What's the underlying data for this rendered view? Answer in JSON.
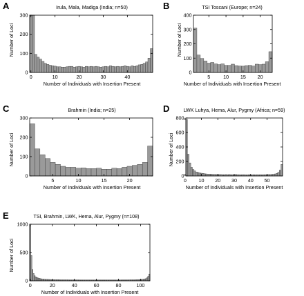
{
  "chart_data": [
    {
      "panel_letter": "A",
      "type": "bar",
      "title": "Irula, Mala, Madiga (India; n=50)",
      "xlabel": "Number of Individuals with Insertion Present",
      "ylabel": "Number of Loci",
      "xlim": [
        -0.5,
        50.5
      ],
      "ylim": [
        0,
        300
      ],
      "xticks": [
        0,
        10,
        20,
        30,
        40
      ],
      "yticks": [
        0,
        100,
        200,
        300
      ],
      "x": [
        0,
        1,
        2,
        3,
        4,
        5,
        6,
        7,
        8,
        9,
        10,
        11,
        12,
        13,
        14,
        15,
        16,
        17,
        18,
        19,
        20,
        21,
        22,
        23,
        24,
        25,
        26,
        27,
        28,
        29,
        30,
        31,
        32,
        33,
        34,
        35,
        36,
        37,
        38,
        39,
        40,
        41,
        42,
        43,
        44,
        45,
        46,
        47,
        48,
        49,
        50
      ],
      "values": [
        300,
        300,
        95,
        80,
        70,
        58,
        48,
        42,
        38,
        35,
        33,
        30,
        30,
        28,
        28,
        30,
        32,
        32,
        28,
        30,
        32,
        30,
        28,
        32,
        30,
        32,
        30,
        32,
        30,
        28,
        30,
        32,
        30,
        35,
        32,
        30,
        32,
        30,
        32,
        35,
        32,
        30,
        35,
        32,
        35,
        40,
        42,
        48,
        55,
        75,
        125
      ]
    },
    {
      "panel_letter": "B",
      "type": "bar",
      "title": "TSI Toscani (Europe; n=24)",
      "xlabel": "Number of Individuals with Insertion Present",
      "ylabel": "Number of Loci",
      "xlim": [
        0.5,
        23.5
      ],
      "ylim": [
        0,
        400
      ],
      "xticks": [
        5,
        10,
        15,
        20
      ],
      "yticks": [
        0,
        100,
        200,
        300,
        400
      ],
      "x": [
        1,
        2,
        3,
        4,
        5,
        6,
        7,
        8,
        9,
        10,
        11,
        12,
        13,
        14,
        15,
        16,
        17,
        18,
        19,
        20,
        21,
        22,
        23
      ],
      "values": [
        310,
        122,
        98,
        80,
        65,
        70,
        60,
        55,
        60,
        50,
        50,
        58,
        48,
        45,
        44,
        48,
        50,
        45,
        58,
        55,
        58,
        75,
        145
      ]
    },
    {
      "panel_letter": "C",
      "type": "bar",
      "title": "Brahmin (India; n=25)",
      "xlabel": "Number of Individuals with Insertion Present",
      "ylabel": "Number of Loci",
      "xlim": [
        0.5,
        24.5
      ],
      "ylim": [
        0,
        300
      ],
      "xticks": [
        5,
        10,
        15,
        20
      ],
      "yticks": [
        0,
        100,
        200,
        300
      ],
      "x": [
        1,
        2,
        3,
        4,
        5,
        6,
        7,
        8,
        9,
        10,
        11,
        12,
        13,
        14,
        15,
        16,
        17,
        18,
        19,
        20,
        21,
        22,
        23,
        24
      ],
      "values": [
        270,
        140,
        110,
        90,
        70,
        60,
        50,
        45,
        45,
        40,
        42,
        38,
        38,
        40,
        35,
        35,
        40,
        38,
        45,
        50,
        55,
        60,
        70,
        155
      ]
    },
    {
      "panel_letter": "D",
      "type": "bar",
      "title": "LWK Luhya, Hema, Alur, Pygmy (Africa; n=59)",
      "xlabel": "Number of Individuals with Insertion Present",
      "ylabel": "Number of Loci",
      "xlim": [
        0.5,
        59.5
      ],
      "ylim": [
        0,
        800
      ],
      "xticks": [
        0,
        10,
        20,
        30,
        40,
        50
      ],
      "yticks": [
        0,
        200,
        400,
        600,
        800
      ],
      "x": [
        1,
        2,
        3,
        4,
        5,
        6,
        7,
        8,
        9,
        10,
        11,
        12,
        13,
        14,
        15,
        16,
        17,
        18,
        19,
        20,
        21,
        22,
        23,
        24,
        25,
        26,
        27,
        28,
        29,
        30,
        31,
        32,
        33,
        34,
        35,
        36,
        37,
        38,
        39,
        40,
        41,
        42,
        43,
        44,
        45,
        46,
        47,
        48,
        49,
        50,
        51,
        52,
        53,
        54,
        55,
        56,
        57,
        58,
        59
      ],
      "values": [
        780,
        300,
        180,
        120,
        90,
        70,
        55,
        48,
        42,
        38,
        35,
        30,
        28,
        26,
        25,
        24,
        22,
        22,
        20,
        20,
        20,
        20,
        18,
        18,
        20,
        18,
        20,
        18,
        18,
        18,
        20,
        18,
        18,
        16,
        18,
        18,
        16,
        16,
        18,
        16,
        16,
        18,
        16,
        18,
        16,
        18,
        16,
        18,
        18,
        18,
        20,
        20,
        22,
        24,
        28,
        35,
        50,
        80,
        160
      ]
    },
    {
      "panel_letter": "E",
      "type": "bar",
      "title": "TSI, Brahmin, LWK, Hema, Alur, Pygmy (n=108)",
      "xlabel": "Number of Individuals with Insertion Present",
      "ylabel": "Number of Loci",
      "xlim": [
        -0.5,
        108.5
      ],
      "ylim": [
        0,
        1000
      ],
      "xticks": [
        0,
        20,
        40,
        60,
        80,
        100
      ],
      "yticks": [
        0,
        500,
        1000
      ],
      "x": [
        0,
        1,
        2,
        3,
        4,
        5,
        6,
        7,
        8,
        9,
        10,
        11,
        12,
        13,
        14,
        15,
        16,
        17,
        18,
        19,
        20,
        21,
        22,
        23,
        24,
        25,
        26,
        27,
        28,
        29,
        30,
        31,
        32,
        33,
        34,
        35,
        36,
        37,
        38,
        39,
        40,
        41,
        42,
        43,
        44,
        45,
        46,
        47,
        48,
        49,
        50,
        51,
        52,
        53,
        54,
        55,
        56,
        57,
        58,
        59,
        60,
        61,
        62,
        63,
        64,
        65,
        66,
        67,
        68,
        69,
        70,
        71,
        72,
        73,
        74,
        75,
        76,
        77,
        78,
        79,
        80,
        81,
        82,
        83,
        84,
        85,
        86,
        87,
        88,
        89,
        90,
        91,
        92,
        93,
        94,
        95,
        96,
        97,
        98,
        99,
        100,
        101,
        102,
        103,
        104,
        105,
        106,
        107,
        108
      ],
      "values": [
        980,
        450,
        200,
        130,
        90,
        70,
        60,
        50,
        45,
        40,
        36,
        34,
        32,
        30,
        28,
        26,
        26,
        24,
        24,
        22,
        22,
        22,
        20,
        20,
        20,
        20,
        20,
        18,
        18,
        18,
        18,
        18,
        18,
        18,
        18,
        17,
        17,
        17,
        17,
        17,
        17,
        17,
        17,
        17,
        17,
        16,
        16,
        16,
        16,
        16,
        16,
        16,
        16,
        16,
        16,
        16,
        16,
        16,
        16,
        16,
        16,
        16,
        16,
        16,
        16,
        16,
        16,
        16,
        16,
        16,
        16,
        16,
        16,
        16,
        16,
        16,
        16,
        16,
        16,
        16,
        16,
        16,
        16,
        17,
        17,
        17,
        17,
        17,
        17,
        17,
        18,
        18,
        18,
        18,
        18,
        18,
        20,
        20,
        22,
        22,
        24,
        26,
        28,
        30,
        35,
        40,
        55,
        80,
        120
      ]
    }
  ]
}
